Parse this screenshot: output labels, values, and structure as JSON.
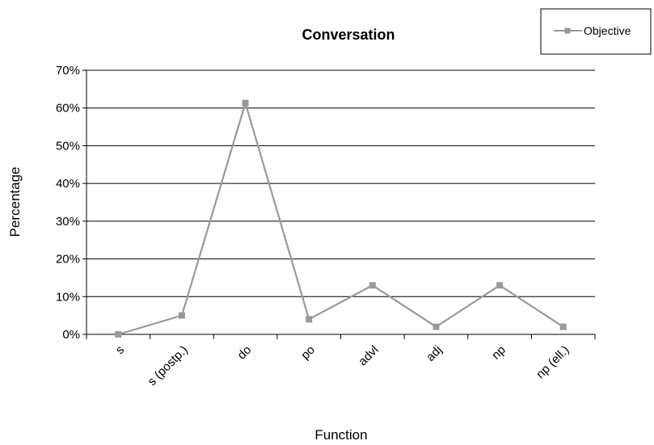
{
  "chart_data": {
    "type": "line",
    "title": "Conversation",
    "xlabel": "Function",
    "ylabel": "Percentage",
    "categories": [
      "s",
      "s (postp.)",
      "do",
      "po",
      "advl",
      "adj",
      "np",
      "np (ell.)"
    ],
    "series": [
      {
        "name": "Objective",
        "values": [
          0,
          5,
          61.3,
          4,
          13,
          2,
          13,
          2
        ],
        "color": "#999999",
        "marker": "square"
      }
    ],
    "ylim": [
      0,
      70
    ],
    "yticks": [
      "0%",
      "10%",
      "20%",
      "30%",
      "40%",
      "50%",
      "60%",
      "70%"
    ],
    "grid": "horizontal",
    "legend_position": "top-right"
  }
}
